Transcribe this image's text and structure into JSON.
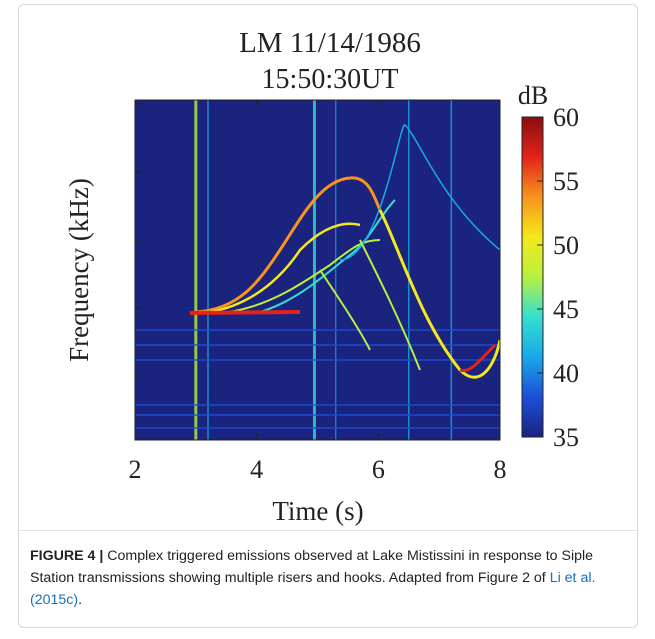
{
  "chart_data": {
    "type": "spectrogram",
    "title": [
      "LM 11/14/1986",
      "15:50:30UT"
    ],
    "x_label": "Time (s)",
    "y_label": "Frequency (kHz)",
    "xlim": [
      2,
      8
    ],
    "xticks": [
      2,
      4,
      6,
      8
    ],
    "colorbar": {
      "label": "dB",
      "lim": [
        35,
        60
      ],
      "ticks": [
        35,
        40,
        45,
        50,
        55,
        60
      ],
      "colormap": [
        "#1a237e",
        "#1d4fd8",
        "#19a8e8",
        "#33e0d0",
        "#b8f040",
        "#f5e81c",
        "#f7941d",
        "#e2231a",
        "#8b0d0d"
      ]
    }
  },
  "caption": {
    "label": "FIGURE 4 |",
    "text": "Complex triggered emissions observed at Lake Mistissini in response to Siple Station transmissions showing multiple risers and hooks. Adapted from Figure 2 of",
    "link": "Li et al. (2015c)",
    "end": "."
  }
}
